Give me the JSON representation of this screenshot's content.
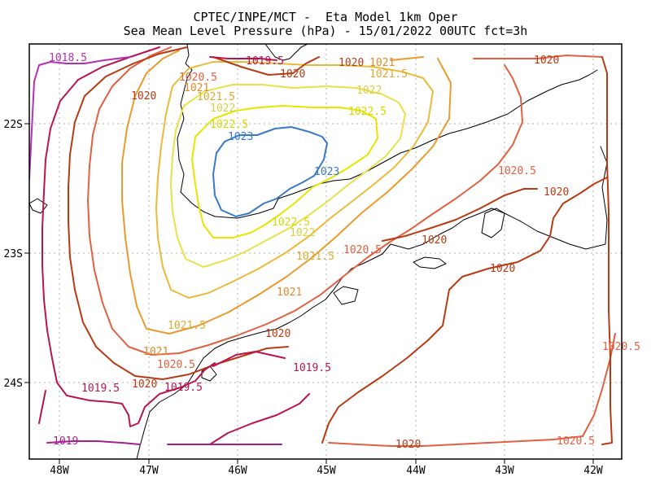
{
  "title": {
    "line1": "CPTEC/INPE/MCT -  Eta Model 1km Oper",
    "line2": "Sea Mean Level Pressure (hPa) - 15/01/2022 00UTC fct=3h"
  },
  "axes": {
    "lon_ticks": [
      "48W",
      "47W",
      "46W",
      "45W",
      "44W",
      "43W",
      "42W"
    ],
    "lat_ticks": [
      "22S",
      "23S",
      "24S"
    ]
  },
  "contours": [
    {
      "label": "1023",
      "color": "#3a78c8"
    },
    {
      "label": "1022.5",
      "color": "#e6e600"
    },
    {
      "label": "1022",
      "color": "#e9e04a"
    },
    {
      "label": "1021.5",
      "color": "#ebba3a"
    },
    {
      "label": "1021",
      "color": "#ea9a2e"
    },
    {
      "label": "1020.5",
      "color": "#e06040"
    },
    {
      "label": "1020",
      "color": "#b83a12"
    },
    {
      "label": "1019.5",
      "color": "#b8154e"
    },
    {
      "label": "1019",
      "color": "#a81e8e"
    },
    {
      "label": "1018.5",
      "color": "#b52fb5"
    }
  ]
}
